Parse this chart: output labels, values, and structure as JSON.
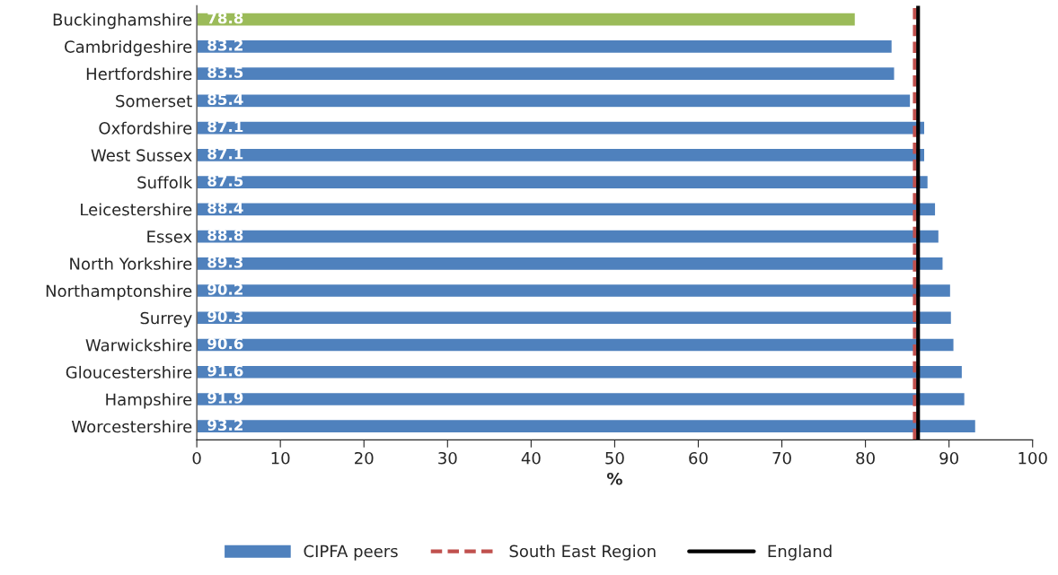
{
  "chart_data": {
    "type": "bar",
    "orientation": "horizontal",
    "xlabel": "%",
    "categories": [
      "Buckinghamshire",
      "Cambridgeshire",
      "Hertfordshire",
      "Somerset",
      "Oxfordshire",
      "West Sussex",
      "Suffolk",
      "Leicestershire",
      "Essex",
      "North Yorkshire",
      "Northamptonshire",
      "Surrey",
      "Warwickshire",
      "Gloucestershire",
      "Hampshire",
      "Worcestershire"
    ],
    "series": [
      {
        "name": "CIPFA peers",
        "color": "#4f81bd",
        "values": [
          78.8,
          83.2,
          83.5,
          85.4,
          87.1,
          87.1,
          87.5,
          88.4,
          88.8,
          89.3,
          90.2,
          90.3,
          90.6,
          91.6,
          91.9,
          93.2
        ],
        "colors": [
          "#9bbb59",
          "#4f81bd",
          "#4f81bd",
          "#4f81bd",
          "#4f81bd",
          "#4f81bd",
          "#4f81bd",
          "#4f81bd",
          "#4f81bd",
          "#4f81bd",
          "#4f81bd",
          "#4f81bd",
          "#4f81bd",
          "#4f81bd",
          "#4f81bd",
          "#4f81bd"
        ]
      }
    ],
    "data_labels": true,
    "ref_lines": [
      {
        "axis": "x",
        "value": 85.9,
        "label": "South East Region",
        "color": "#c0504d",
        "line_style": "dashed"
      },
      {
        "axis": "x",
        "value": 86.3,
        "label": "England",
        "color": "#000000",
        "line_style": "solid"
      }
    ],
    "xlim": [
      0,
      100
    ],
    "xticks": [
      0,
      10,
      20,
      30,
      40,
      50,
      60,
      70,
      80,
      90,
      100
    ],
    "grid": false,
    "legend": "bottom"
  }
}
